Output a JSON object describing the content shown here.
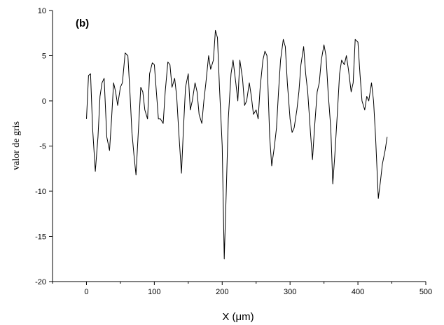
{
  "chart_data": {
    "type": "line",
    "panel_label": "(b)",
    "xlabel": "X (μm)",
    "ylabel": "valor de gris",
    "xlim": [
      -50,
      500
    ],
    "ylim": [
      -20,
      10
    ],
    "x_ticks": [
      0,
      100,
      200,
      300,
      400,
      500
    ],
    "y_ticks": [
      -20,
      -15,
      -10,
      -5,
      0,
      5,
      10
    ],
    "grid": false,
    "legend": "none",
    "series": [
      {
        "color": "#000000",
        "x": [
          0,
          3,
          6,
          9,
          13,
          17,
          20,
          23,
          26,
          30,
          34,
          37,
          40,
          43,
          46,
          50,
          53,
          57,
          61,
          64,
          67,
          70,
          73,
          76,
          80,
          83,
          86,
          90,
          93,
          97,
          100,
          103,
          106,
          109,
          113,
          116,
          120,
          123,
          126,
          130,
          133,
          136,
          140,
          143,
          146,
          150,
          153,
          156,
          160,
          163,
          166,
          170,
          173,
          176,
          180,
          183,
          187,
          190,
          193,
          196,
          200,
          203,
          206,
          209,
          213,
          216,
          220,
          223,
          226,
          230,
          233,
          236,
          240,
          243,
          246,
          250,
          253,
          256,
          260,
          263,
          266,
          270,
          273,
          277,
          280,
          283,
          286,
          290,
          293,
          296,
          300,
          303,
          306,
          310,
          313,
          316,
          320,
          323,
          326,
          330,
          333,
          336,
          340,
          343,
          346,
          350,
          353,
          356,
          360,
          363,
          366,
          370,
          373,
          376,
          380,
          383,
          386,
          390,
          393,
          396,
          400,
          403,
          406,
          410,
          413,
          416,
          420,
          423,
          426,
          430,
          433,
          436,
          440,
          443
        ],
        "y": [
          -2,
          2.8,
          3,
          -3,
          -7.8,
          -4,
          0.5,
          2,
          2.5,
          -4,
          -5.5,
          -2,
          2,
          1,
          -0.5,
          1.5,
          2,
          5.3,
          5,
          1,
          -3.5,
          -6,
          -8.2,
          -4,
          1.5,
          1,
          -1,
          -2,
          3,
          4.2,
          4,
          1,
          -2,
          -2,
          -2.5,
          1,
          4.3,
          4,
          1.5,
          2.5,
          0.5,
          -3.5,
          -8,
          -3,
          1.5,
          3,
          -1,
          0,
          2,
          1,
          -1.5,
          -2.5,
          0,
          2,
          5,
          3.5,
          4.5,
          7.8,
          7,
          1.5,
          -5,
          -17.5,
          -10,
          -2,
          3,
          4.5,
          2,
          0,
          4.5,
          2.5,
          -0.5,
          0,
          2,
          0.5,
          -1.5,
          -1,
          -2,
          1.5,
          4.5,
          5.5,
          5,
          -4,
          -7.2,
          -5,
          -3,
          1,
          4.5,
          6.8,
          6,
          2,
          -2,
          -3.5,
          -3,
          -1,
          1,
          4,
          6,
          3,
          1,
          -3.5,
          -6.5,
          -3,
          1,
          2,
          4.5,
          6.2,
          5,
          1,
          -3,
          -9.2,
          -6,
          -1,
          3,
          4.5,
          4,
          5,
          3.5,
          1,
          2,
          6.8,
          6.5,
          3,
          0,
          -1,
          0.5,
          0,
          2,
          0,
          -4,
          -10.8,
          -9,
          -7,
          -5.5,
          -4
        ]
      }
    ]
  }
}
